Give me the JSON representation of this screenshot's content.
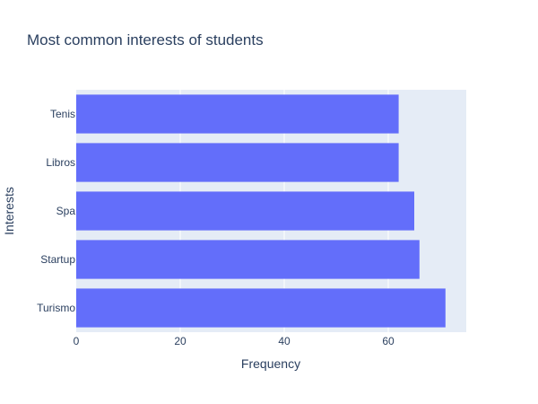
{
  "chart_data": {
    "type": "bar",
    "orientation": "horizontal",
    "title": "Most common interests of students",
    "xlabel": "Frequency",
    "ylabel": "Interests",
    "categories": [
      "Turismo",
      "Startup",
      "Spa",
      "Libros",
      "Tenis"
    ],
    "values": [
      71,
      66,
      65,
      62,
      62
    ],
    "xlim": [
      0,
      75
    ],
    "xticks": [
      0,
      20,
      40,
      60
    ],
    "grid": true,
    "colors": {
      "bar": "#636efa",
      "plot_bg": "#e5ecf6",
      "grid": "#ffffff",
      "text": "#2a3f5f"
    }
  }
}
